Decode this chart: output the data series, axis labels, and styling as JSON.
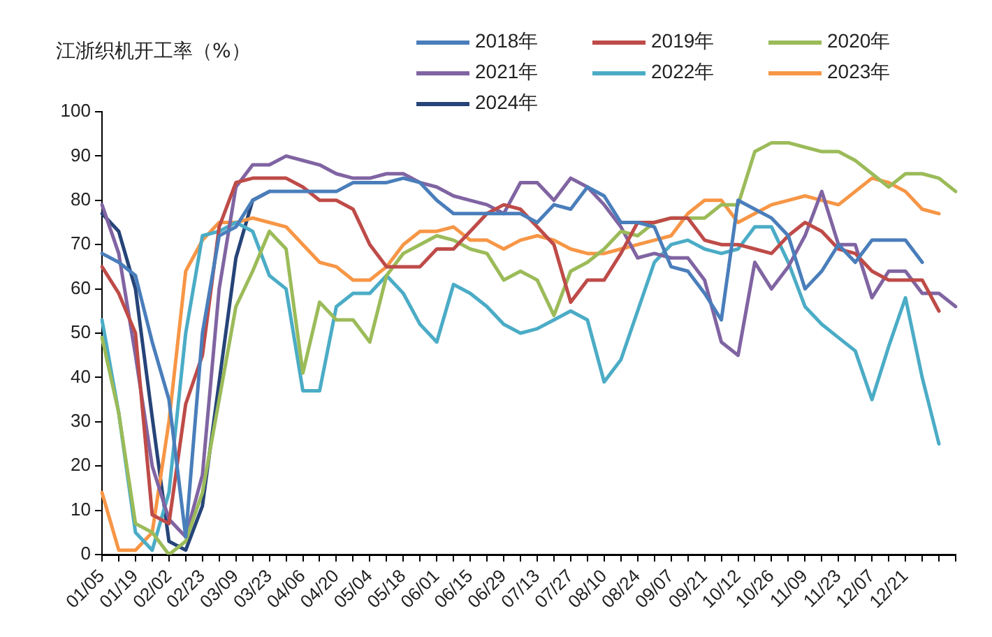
{
  "chart_data": {
    "type": "line",
    "ylabel": "江浙织机开工率（%）",
    "categories": [
      "01/05",
      null,
      "01/19",
      null,
      "02/02",
      null,
      "02/23",
      null,
      "03/09",
      null,
      "03/23",
      null,
      "04/06",
      null,
      "04/20",
      null,
      "05/04",
      null,
      "05/18",
      null,
      "06/01",
      null,
      "06/15",
      null,
      "06/29",
      null,
      "07/13",
      null,
      "07/27",
      null,
      "08/10",
      null,
      "08/24",
      null,
      "09/07",
      null,
      "09/21",
      null,
      "10/12",
      null,
      "10/26",
      null,
      "11/09",
      null,
      "11/23",
      null,
      "12/07",
      null,
      "12/21",
      null,
      null,
      null
    ],
    "ylim": [
      0,
      100
    ],
    "yticks": [
      0,
      10,
      20,
      30,
      40,
      50,
      60,
      70,
      80,
      90,
      100
    ],
    "grid": false,
    "legend": "top",
    "marker": "none",
    "line_style": "solid",
    "series": [
      {
        "name": "2018年",
        "color": "#4a7ebb",
        "values": [
          68,
          66,
          63,
          48,
          35,
          4,
          50,
          72,
          74,
          80,
          82,
          82,
          82,
          82,
          82,
          84,
          84,
          84,
          85,
          84,
          80,
          77,
          77,
          77,
          77,
          77,
          75,
          79,
          78,
          83,
          81,
          75,
          75,
          74,
          65,
          64,
          59,
          53,
          80,
          78,
          76,
          72,
          60,
          64,
          70,
          66,
          71,
          71,
          71,
          66,
          null,
          null
        ]
      },
      {
        "name": "2019年",
        "color": "#be4b48",
        "values": [
          65,
          59,
          50,
          9,
          7,
          34,
          45,
          74,
          84,
          85,
          85,
          85,
          83,
          80,
          80,
          78,
          70,
          65,
          65,
          65,
          69,
          69,
          73,
          77,
          79,
          78,
          74,
          70,
          57,
          62,
          62,
          68,
          75,
          75,
          76,
          76,
          71,
          70,
          70,
          69,
          68,
          72,
          75,
          73,
          69,
          68,
          64,
          62,
          62,
          62,
          55,
          null
        ]
      },
      {
        "name": "2020年",
        "color": "#9bbb59",
        "values": [
          49,
          32,
          7,
          5,
          0,
          3,
          14,
          35,
          56,
          64,
          73,
          69,
          41,
          57,
          53,
          53,
          48,
          63,
          68,
          70,
          72,
          71,
          69,
          68,
          62,
          64,
          62,
          54,
          64,
          66,
          69,
          73,
          72,
          75,
          76,
          76,
          76,
          79,
          79,
          91,
          93,
          93,
          92,
          91,
          91,
          89,
          86,
          83,
          86,
          86,
          85,
          82
        ]
      },
      {
        "name": "2021年",
        "color": "#8064a2",
        "values": [
          79,
          68,
          45,
          20,
          8,
          4,
          18,
          60,
          83,
          88,
          88,
          90,
          89,
          88,
          86,
          85,
          85,
          86,
          86,
          84,
          83,
          81,
          80,
          79,
          77,
          84,
          84,
          80,
          85,
          83,
          79,
          74,
          67,
          68,
          67,
          67,
          62,
          48,
          45,
          66,
          60,
          65,
          72,
          82,
          70,
          70,
          58,
          64,
          64,
          59,
          59,
          56
        ]
      },
      {
        "name": "2022年",
        "color": "#4bacc6",
        "values": [
          53,
          32,
          5,
          1,
          14,
          50,
          72,
          73,
          75,
          73,
          63,
          60,
          37,
          37,
          56,
          59,
          59,
          63,
          59,
          52,
          48,
          61,
          59,
          56,
          52,
          50,
          51,
          53,
          55,
          53,
          39,
          44,
          55,
          66,
          70,
          71,
          69,
          68,
          69,
          74,
          74,
          66,
          56,
          52,
          49,
          46,
          35,
          47,
          58,
          40,
          25,
          null
        ]
      },
      {
        "name": "2023年",
        "color": "#f79646",
        "values": [
          14,
          1,
          1,
          5,
          30,
          64,
          71,
          75,
          75,
          76,
          75,
          74,
          70,
          66,
          65,
          62,
          62,
          65,
          70,
          73,
          73,
          74,
          71,
          71,
          69,
          71,
          72,
          71,
          69,
          68,
          68,
          69,
          70,
          71,
          72,
          77,
          80,
          80,
          75,
          77,
          79,
          80,
          81,
          80,
          79,
          82,
          85,
          84,
          82,
          78,
          77,
          null
        ]
      },
      {
        "name": "2024年",
        "color": "#264478",
        "values": [
          77,
          73,
          60,
          31,
          3,
          1,
          11,
          39,
          67,
          80,
          82,
          null,
          null,
          null,
          null,
          null,
          null,
          null,
          null,
          null,
          null,
          null,
          null,
          null,
          null,
          null,
          null,
          null,
          null,
          null,
          null,
          null,
          null,
          null,
          null,
          null,
          null,
          null,
          null,
          null,
          null,
          null,
          null,
          null,
          null,
          null,
          null,
          null,
          null,
          null,
          null,
          null
        ]
      }
    ]
  }
}
